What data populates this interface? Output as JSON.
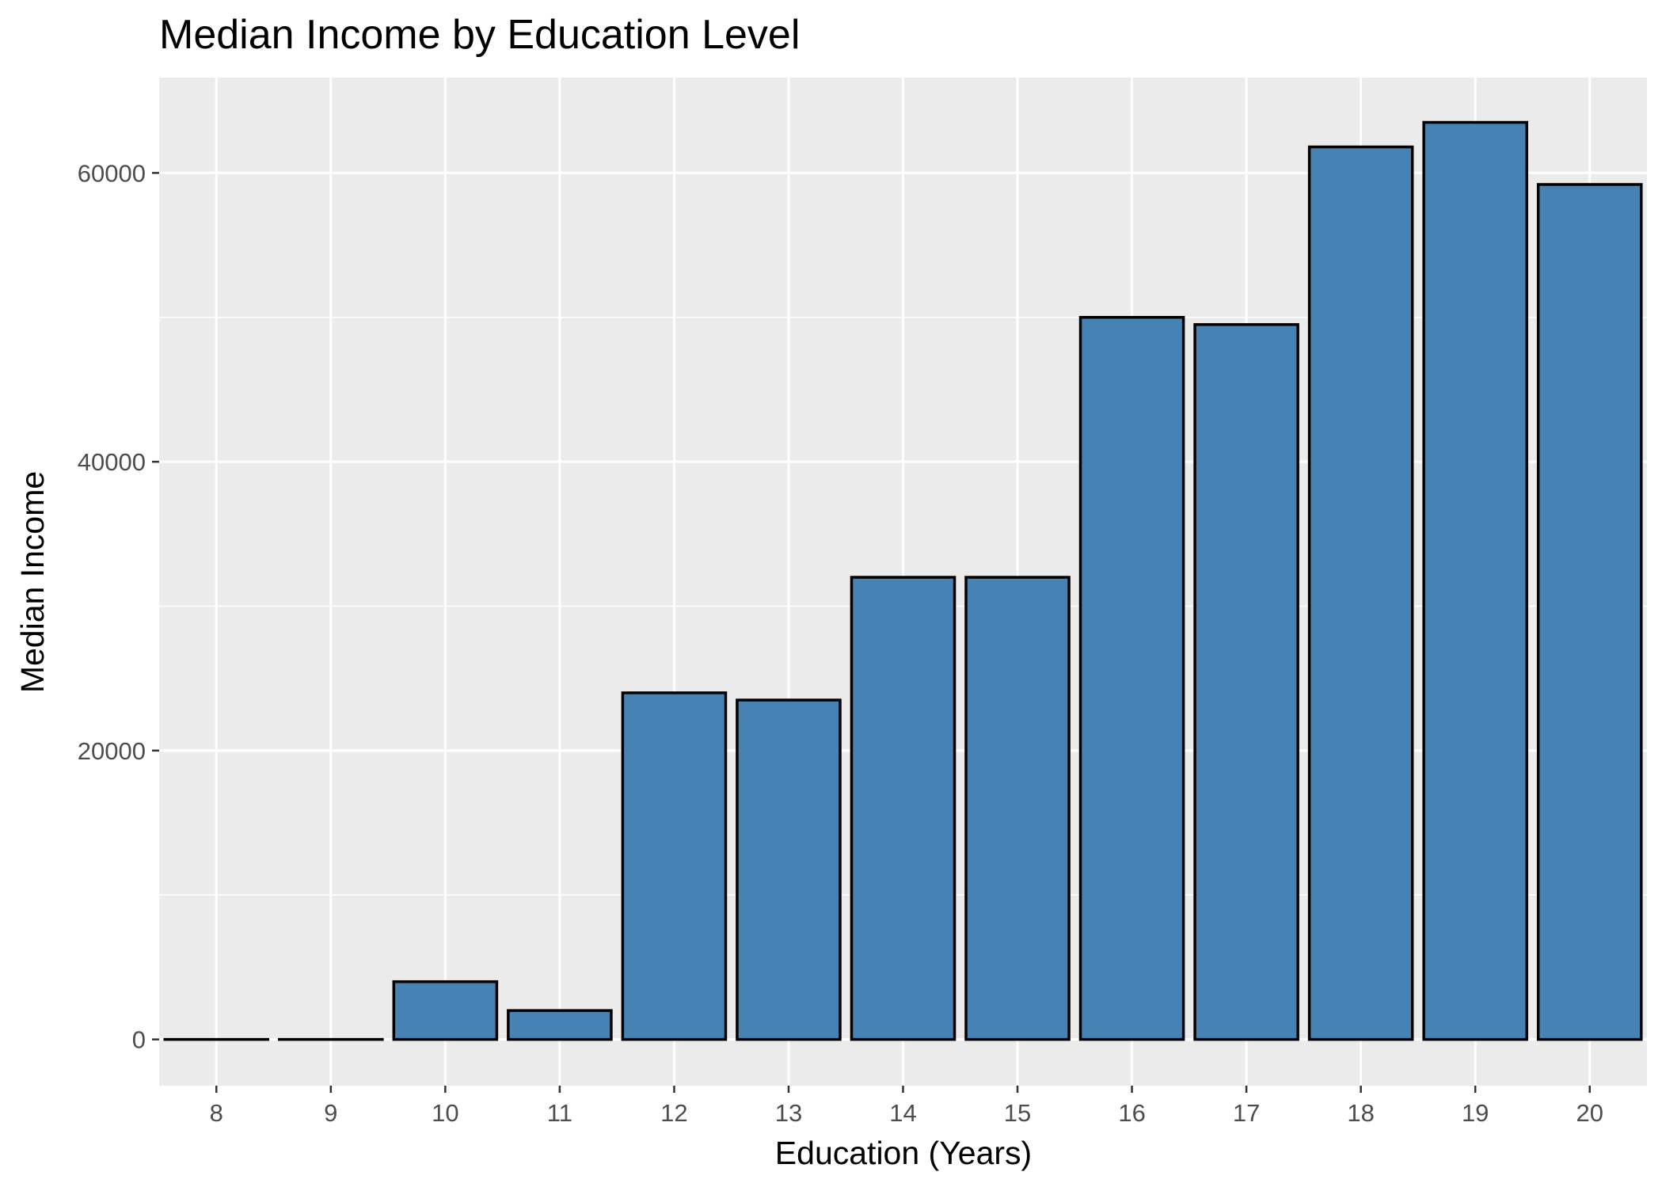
{
  "chart_data": {
    "type": "bar",
    "title": "Median Income by Education Level",
    "xlabel": "Education (Years)",
    "ylabel": "Median Income",
    "categories": [
      "8",
      "9",
      "10",
      "11",
      "12",
      "13",
      "14",
      "15",
      "16",
      "17",
      "18",
      "19",
      "20"
    ],
    "values": [
      0,
      0,
      4000,
      2000,
      24000,
      23500,
      32000,
      32000,
      50000,
      49500,
      61800,
      63500,
      59200
    ],
    "ylim": [
      -3200,
      66600
    ],
    "yticks": [
      0,
      20000,
      40000,
      60000
    ],
    "ytick_labels": [
      "0",
      "20000",
      "40000",
      "60000"
    ],
    "grid": true,
    "legend": "none",
    "colors": {
      "bar_fill": "#4682b4",
      "bar_outline": "#000000",
      "panel_background": "#ebebeb",
      "grid_major": "#ffffff",
      "tick_text": "#4d4d4d"
    }
  }
}
